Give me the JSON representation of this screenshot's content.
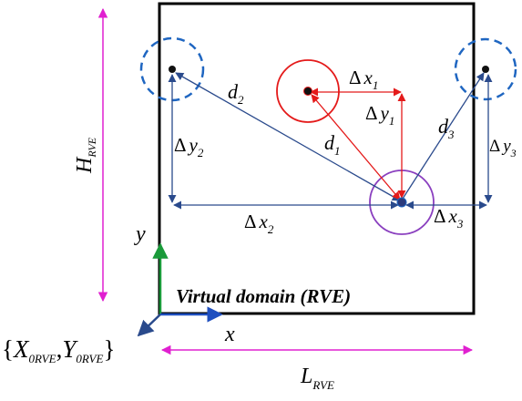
{
  "labels": {
    "d1": "d",
    "d1_sub": "1",
    "d2": "d",
    "d2_sub": "2",
    "d3": "d",
    "d3_sub": "3",
    "dx1_delta": "Δ",
    "dx1_var": "x",
    "dx1_sub": "1",
    "dy1_delta": "Δ",
    "dy1_var": "y",
    "dy1_sub": "1",
    "dx2_delta": "Δ",
    "dx2_var": "x",
    "dx2_sub": "2",
    "dy2_delta": "Δ",
    "dy2_var": "y",
    "dy2_sub": "2",
    "dx3_delta": "Δ",
    "dx3_var": "x",
    "dx3_sub": "3",
    "dy3_delta": "Δ",
    "dy3_var": "y",
    "dy3_sub": "3",
    "height_var": "H",
    "height_sub": "RVE",
    "length_var": "L",
    "length_sub": "RVE",
    "axis_x": "x",
    "axis_y": "y",
    "domain_title": "Virtual domain (RVE)",
    "origin_open": "{",
    "origin_x": "X",
    "origin_x_sub": "0RVE",
    "origin_comma": ",",
    "origin_y": "Y",
    "origin_y_sub": "0RVE",
    "origin_close": "}"
  },
  "colors": {
    "frame": "#000000",
    "dimension": "#e020d0",
    "connector": "#2a4a8c",
    "red_link": "#e41a1a",
    "purple_circle": "#8a3fbf",
    "dashed_circle": "#1f66c1",
    "axis_x": "#1f4fbf",
    "axis_y": "#1a9a3a"
  },
  "icons": {
    "center_particle": "filled-dot",
    "periodic_image": "dashed-circle"
  }
}
